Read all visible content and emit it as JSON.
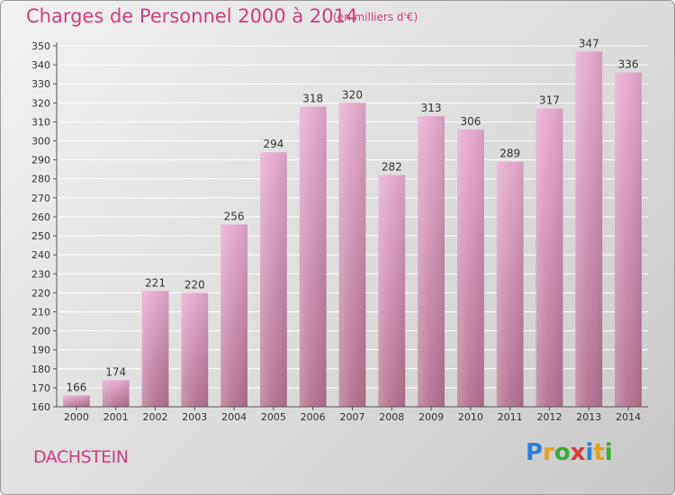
{
  "title": "Charges de Personnel 2000 à 2014",
  "subtitle": "(en milliers d'€)",
  "commune": "DACHSTEIN",
  "logo": {
    "letters": [
      "P",
      "r",
      "o",
      "x",
      "i",
      "t",
      "i"
    ],
    "colors": [
      "#2e7fd6",
      "#e8a11c",
      "#3aaa35",
      "#d93a3a",
      "#2e7fd6",
      "#e8a11c",
      "#3aaa35"
    ]
  },
  "colors": {
    "accent": "#d23c7e",
    "bar_top": "#e5a9cd",
    "bar_bottom": "#b3708f"
  },
  "chart_data": {
    "type": "bar",
    "title": "Charges de Personnel 2000 à 2014",
    "subtitle": "(en milliers d'€)",
    "categories": [
      "2000",
      "2001",
      "2002",
      "2003",
      "2004",
      "2005",
      "2006",
      "2007",
      "2008",
      "2009",
      "2010",
      "2011",
      "2012",
      "2013",
      "2014"
    ],
    "values": [
      166,
      174,
      221,
      220,
      256,
      294,
      318,
      320,
      282,
      313,
      306,
      289,
      317,
      347,
      336
    ],
    "ylim": [
      160,
      350
    ],
    "ytick_step": 10,
    "grid": true,
    "xlabel": "",
    "ylabel": ""
  }
}
